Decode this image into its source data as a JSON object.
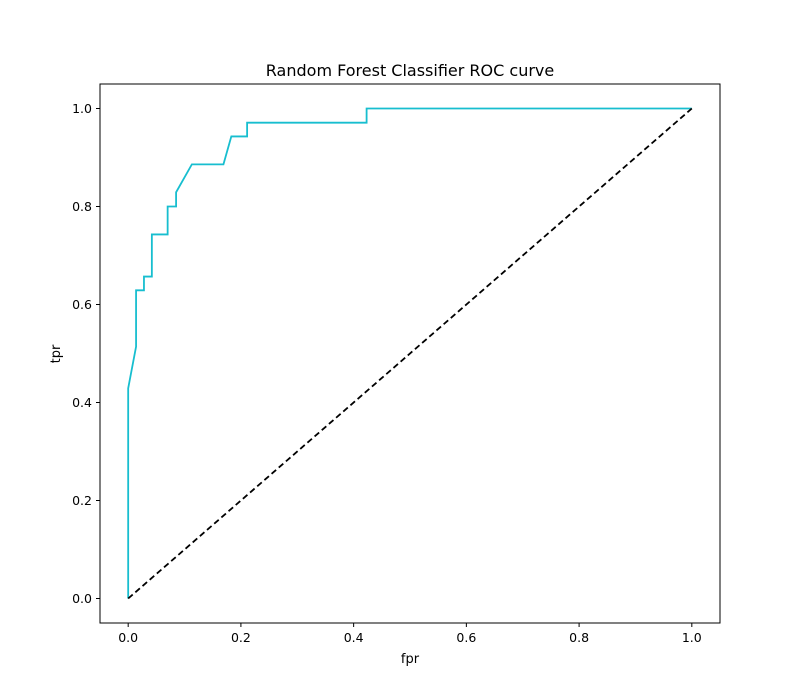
{
  "chart_data": {
    "type": "line",
    "title": "Random Forest Classifier ROC curve",
    "xlabel": "fpr",
    "ylabel": "tpr",
    "xlim": [
      -0.05,
      1.05
    ],
    "ylim": [
      -0.05,
      1.05
    ],
    "xticks": [
      0.0,
      0.2,
      0.4,
      0.6,
      0.8,
      1.0
    ],
    "yticks": [
      0.0,
      0.2,
      0.4,
      0.6,
      0.8,
      1.0
    ],
    "tick_labels": [
      "0.0",
      "0.2",
      "0.4",
      "0.6",
      "0.8",
      "1.0"
    ],
    "grid": false,
    "series": [
      {
        "color": "#17becf",
        "style": "solid",
        "x": [
          0.0,
          0.0,
          0.014,
          0.014,
          0.028,
          0.028,
          0.042,
          0.042,
          0.07,
          0.07,
          0.085,
          0.085,
          0.113,
          0.169,
          0.183,
          0.211,
          0.211,
          0.423,
          0.423,
          1.0
        ],
        "y": [
          0.0,
          0.429,
          0.514,
          0.629,
          0.629,
          0.657,
          0.657,
          0.743,
          0.743,
          0.8,
          0.8,
          0.829,
          0.886,
          0.886,
          0.943,
          0.943,
          0.971,
          0.971,
          1.0,
          1.0
        ]
      },
      {
        "color": "#000000",
        "style": "dashed",
        "x": [
          0.0,
          1.0
        ],
        "y": [
          0.0,
          1.0
        ]
      }
    ]
  }
}
